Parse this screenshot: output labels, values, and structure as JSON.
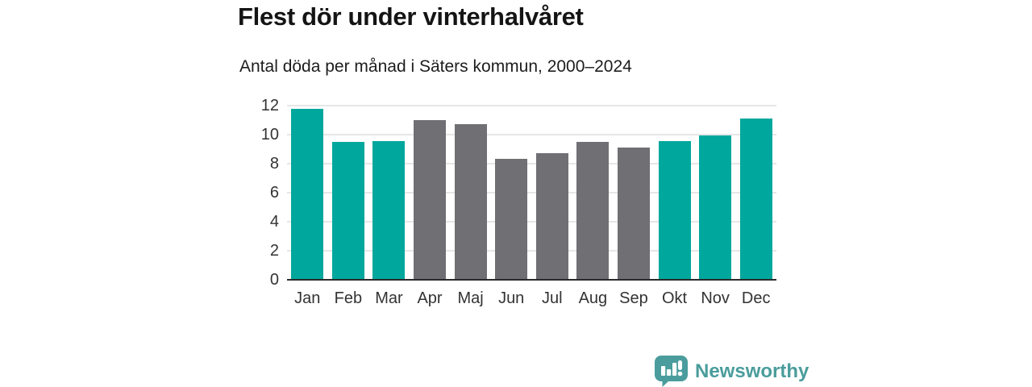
{
  "header": {
    "title": "Flest dör under vinterhalvåret",
    "subtitle": "Antal döda per månad i Säters kommun, 2000–2024"
  },
  "footer": {
    "brand_name": "Newsworthy",
    "brand_color": "#4A9D9C",
    "brand_icon": "speech-bubble-bar-chart-icon"
  },
  "chart_data": {
    "type": "bar",
    "title": "Flest dör under vinterhalvåret",
    "subtitle": "Antal döda per månad i Säters kommun, 2000–2024",
    "categories": [
      "Jan",
      "Feb",
      "Mar",
      "Apr",
      "Maj",
      "Jun",
      "Jul",
      "Aug",
      "Sep",
      "Okt",
      "Nov",
      "Dec"
    ],
    "values": [
      11.8,
      9.5,
      9.55,
      11.0,
      10.7,
      8.35,
      8.7,
      9.5,
      9.1,
      9.55,
      9.95,
      11.1
    ],
    "bar_colors": [
      "#00A79D",
      "#00A79D",
      "#00A79D",
      "#6F6F74",
      "#6F6F74",
      "#6F6F74",
      "#6F6F74",
      "#6F6F74",
      "#6F6F74",
      "#00A79D",
      "#00A79D",
      "#00A79D"
    ],
    "highlight_color": "#00A79D",
    "base_color": "#6F6F74",
    "xlabel": "",
    "ylabel": "",
    "ylim": [
      0,
      12
    ],
    "ytick_step": 2,
    "yticks": [
      0,
      2,
      4,
      6,
      8,
      10,
      12
    ],
    "grid": true,
    "gridline_color": "#E6E6E6",
    "axis_line_color": "#2B2B2B",
    "tick_label_color": "#333333",
    "legend": "none"
  }
}
